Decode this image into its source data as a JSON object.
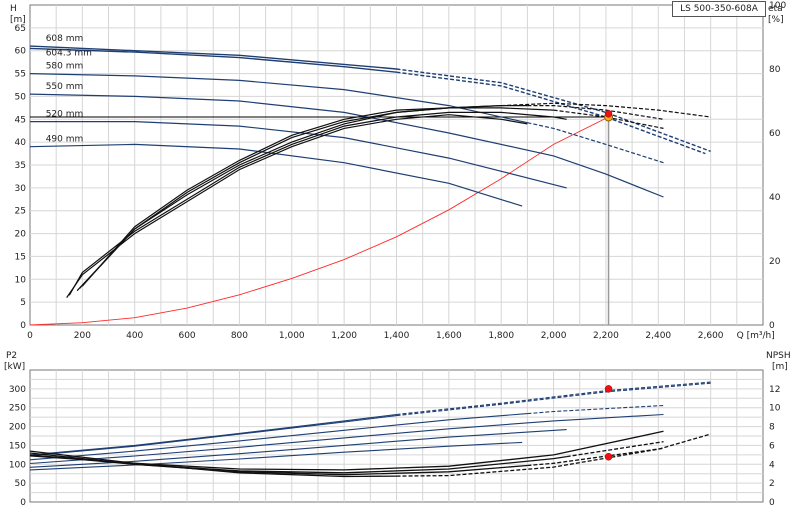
{
  "model_label": "LS 500-350-608A",
  "chart_data": [
    {
      "type": "line",
      "id": "head-efficiency",
      "xlabel": "Q [m³/h]",
      "xlim": [
        0,
        2800
      ],
      "x_ticks": [
        0,
        200,
        400,
        600,
        800,
        1000,
        1200,
        1400,
        1600,
        1800,
        2000,
        2200,
        2400,
        2600
      ],
      "x_tick_labels": [
        "0",
        "200",
        "400",
        "600",
        "800",
        "1,000",
        "1,200",
        "1,400",
        "1,600",
        "1,800",
        "2,000",
        "2,200",
        "2,400",
        "2,600"
      ],
      "y_left": {
        "label": "H",
        "unit": "[m]",
        "lim": [
          0,
          70
        ],
        "ticks": [
          0,
          5,
          10,
          15,
          20,
          25,
          30,
          35,
          40,
          45,
          50,
          55,
          60,
          65
        ]
      },
      "y_right": {
        "label": "eta",
        "unit": "[%]",
        "lim": [
          0,
          100
        ],
        "ticks": [
          0,
          20,
          40,
          60,
          80,
          100
        ]
      },
      "grid": true,
      "head_curves": [
        {
          "label": "608 mm",
          "points": [
            [
              0,
              61
            ],
            [
              400,
              60
            ],
            [
              800,
              59
            ],
            [
              1200,
              57
            ],
            [
              1400,
              56
            ],
            [
              1800,
              53
            ],
            [
              2200,
              46.5
            ],
            [
              2600,
              38
            ]
          ],
          "solid_until": 1400
        },
        {
          "label": "604.3 mm",
          "points": [
            [
              0,
              60.5
            ],
            [
              400,
              59.7
            ],
            [
              800,
              58.5
            ],
            [
              1200,
              56.5
            ],
            [
              1400,
              55.3
            ],
            [
              1800,
              52.3
            ],
            [
              2200,
              45.5
            ],
            [
              2580,
              37.5
            ]
          ],
          "solid_until": 1400
        },
        {
          "label": "580 mm",
          "points": [
            [
              0,
              55
            ],
            [
              400,
              54.5
            ],
            [
              800,
              53.5
            ],
            [
              1200,
              51.5
            ],
            [
              1600,
              48
            ],
            [
              2000,
              43
            ],
            [
              2200,
              39.5
            ],
            [
              2420,
              35.5
            ]
          ],
          "solid_until": 1900
        },
        {
          "label": "550 mm",
          "points": [
            [
              0,
              50.5
            ],
            [
              400,
              50
            ],
            [
              800,
              49
            ],
            [
              1200,
              46.5
            ],
            [
              1600,
              42
            ],
            [
              2000,
              37
            ],
            [
              2200,
              33
            ],
            [
              2420,
              28
            ]
          ],
          "solid_until": 2420
        },
        {
          "label": "520 mm",
          "points": [
            [
              0,
              44.5
            ],
            [
              400,
              44.5
            ],
            [
              800,
              43.5
            ],
            [
              1200,
              41
            ],
            [
              1600,
              36.5
            ],
            [
              2050,
              30
            ]
          ],
          "solid_until": 2050
        },
        {
          "label": "490 mm",
          "points": [
            [
              0,
              39
            ],
            [
              400,
              39.5
            ],
            [
              800,
              38.5
            ],
            [
              1200,
              35.5
            ],
            [
              1600,
              31
            ],
            [
              1880,
              26
            ]
          ],
          "solid_until": 1880
        }
      ],
      "efficiency_curves": [
        {
          "points": [
            [
              140,
              6
            ],
            [
              200,
              11
            ],
            [
              400,
              20
            ],
            [
              600,
              27
            ],
            [
              800,
              34
            ],
            [
              1000,
              39
            ],
            [
              1200,
              43
            ],
            [
              1400,
              45
            ],
            [
              1600,
              46
            ],
            [
              1800,
              45
            ],
            [
              1900,
              44
            ]
          ],
          "solid_until": 1900
        },
        {
          "points": [
            [
              150,
              6.5
            ],
            [
              200,
              11.5
            ],
            [
              400,
              20.5
            ],
            [
              600,
              27.5
            ],
            [
              800,
              34.5
            ],
            [
              1000,
              39.5
            ],
            [
              1200,
              43.5
            ],
            [
              1400,
              45.5
            ],
            [
              1600,
              46.5
            ],
            [
              1800,
              46.5
            ],
            [
              2000,
              45.5
            ],
            [
              2050,
              45
            ]
          ],
          "solid_until": 2050
        },
        {
          "points": [
            [
              180,
              7.5
            ],
            [
              400,
              21
            ],
            [
              600,
              28.5
            ],
            [
              800,
              35
            ],
            [
              1000,
              40
            ],
            [
              1200,
              44
            ],
            [
              1400,
              46.5
            ],
            [
              1600,
              47.5
            ],
            [
              1800,
              47.5
            ],
            [
              2000,
              47
            ],
            [
              2200,
              45.5
            ],
            [
              2420,
              43
            ]
          ],
          "solid_until": 2000
        },
        {
          "points": [
            [
              190,
              8
            ],
            [
              400,
              21
            ],
            [
              600,
              29
            ],
            [
              800,
              35.5
            ],
            [
              1000,
              41
            ],
            [
              1200,
              44.5
            ],
            [
              1400,
              46.5
            ],
            [
              1600,
              47.5
            ],
            [
              1800,
              48
            ],
            [
              2000,
              48
            ],
            [
              2200,
              47
            ],
            [
              2420,
              45
            ]
          ],
          "solid_until": 1900
        },
        {
          "points": [
            [
              200,
              8.5
            ],
            [
              400,
              21.5
            ],
            [
              600,
              29.5
            ],
            [
              800,
              36
            ],
            [
              1000,
              41.5
            ],
            [
              1200,
              45
            ],
            [
              1400,
              47
            ],
            [
              1600,
              47.5
            ],
            [
              1800,
              48
            ],
            [
              2000,
              48.5
            ],
            [
              2200,
              48
            ],
            [
              2400,
              47
            ],
            [
              2600,
              45.5
            ]
          ],
          "solid_until": 1800
        }
      ],
      "system_curve": {
        "points": [
          [
            0,
            0
          ],
          [
            200,
            0.5
          ],
          [
            400,
            1.6
          ],
          [
            600,
            3.7
          ],
          [
            800,
            6.6
          ],
          [
            1000,
            10.2
          ],
          [
            1200,
            14.3
          ],
          [
            1400,
            19.3
          ],
          [
            1600,
            25.2
          ],
          [
            1800,
            32
          ],
          [
            2000,
            39.5
          ],
          [
            2210,
            45.5
          ]
        ]
      },
      "operating_point": {
        "q": 2210,
        "h": 45.5,
        "eta": 66
      },
      "operating_line_h": 45.5
    },
    {
      "type": "line",
      "id": "power-npsh",
      "xlim": [
        0,
        2800
      ],
      "y_left": {
        "label": "P2",
        "unit": "[kW]",
        "lim": [
          0,
          350
        ],
        "ticks": [
          0,
          50,
          100,
          150,
          200,
          250,
          300
        ]
      },
      "y_right": {
        "label": "NPSH",
        "unit": "[m]",
        "lim": [
          0,
          14
        ],
        "ticks": [
          0,
          2,
          4,
          6,
          8,
          10,
          12
        ]
      },
      "grid": true,
      "power_curves": [
        {
          "points": [
            [
              0,
              125
            ],
            [
              400,
              150
            ],
            [
              800,
              182
            ],
            [
              1200,
              215
            ],
            [
              1400,
              232
            ],
            [
              1800,
              262
            ],
            [
              2200,
              295
            ],
            [
              2600,
              318
            ]
          ],
          "solid_until": 1400
        },
        {
          "points": [
            [
              0,
              123
            ],
            [
              400,
              148
            ],
            [
              800,
              180
            ],
            [
              1200,
              212
            ],
            [
              1400,
              229
            ],
            [
              1800,
              259
            ],
            [
              2200,
              292
            ],
            [
              2600,
              315
            ]
          ],
          "solid_until": 1400
        },
        {
          "points": [
            [
              0,
              112
            ],
            [
              400,
              135
            ],
            [
              800,
              162
            ],
            [
              1200,
              190
            ],
            [
              1600,
              218
            ],
            [
              2000,
              240
            ],
            [
              2420,
              256
            ]
          ],
          "solid_until": 1900
        },
        {
          "points": [
            [
              0,
              102
            ],
            [
              400,
              122
            ],
            [
              800,
              145
            ],
            [
              1200,
              170
            ],
            [
              1600,
              194
            ],
            [
              2000,
              215
            ],
            [
              2420,
              232
            ]
          ],
          "solid_until": 2420
        },
        {
          "points": [
            [
              0,
              92
            ],
            [
              400,
              108
            ],
            [
              800,
              128
            ],
            [
              1200,
              150
            ],
            [
              1600,
              172
            ],
            [
              2050,
              192
            ]
          ],
          "solid_until": 2050
        },
        {
          "points": [
            [
              0,
              85
            ],
            [
              400,
              98
            ],
            [
              800,
              114
            ],
            [
              1200,
              132
            ],
            [
              1600,
              148
            ],
            [
              1880,
              158
            ]
          ],
          "solid_until": 1880
        }
      ],
      "npsh_curves": [
        {
          "points": [
            [
              0,
              5.4
            ],
            [
              400,
              4.1
            ],
            [
              800,
              3.1
            ],
            [
              1200,
              2.7
            ],
            [
              1600,
              2.8
            ],
            [
              2000,
              3.7
            ],
            [
              2400,
              5.6
            ],
            [
              2600,
              7.2
            ]
          ],
          "solid_until": 1400
        },
        {
          "points": [
            [
              0,
              5.2
            ],
            [
              400,
              4.0
            ],
            [
              800,
              3.2
            ],
            [
              1200,
              2.9
            ],
            [
              1600,
              3.2
            ],
            [
              2000,
              4.1
            ],
            [
              2420,
              5.7
            ]
          ],
          "solid_until": 1900
        },
        {
          "points": [
            [
              0,
              5.0
            ],
            [
              400,
              4.0
            ],
            [
              800,
              3.3
            ],
            [
              1200,
              3.1
            ],
            [
              1600,
              3.5
            ],
            [
              2000,
              4.6
            ],
            [
              2420,
              6.4
            ]
          ],
          "solid_until": 2050
        },
        {
          "points": [
            [
              0,
              4.9
            ],
            [
              400,
              4.1
            ],
            [
              800,
              3.5
            ],
            [
              1200,
              3.4
            ],
            [
              1600,
              3.8
            ],
            [
              2000,
              5.0
            ],
            [
              2420,
              7.5
            ]
          ],
          "solid_until": 2420
        }
      ],
      "operating_point_power": {
        "q": 2210,
        "p2": 300
      },
      "operating_point_npsh": {
        "q": 2210,
        "npsh": 4.8
      }
    }
  ]
}
